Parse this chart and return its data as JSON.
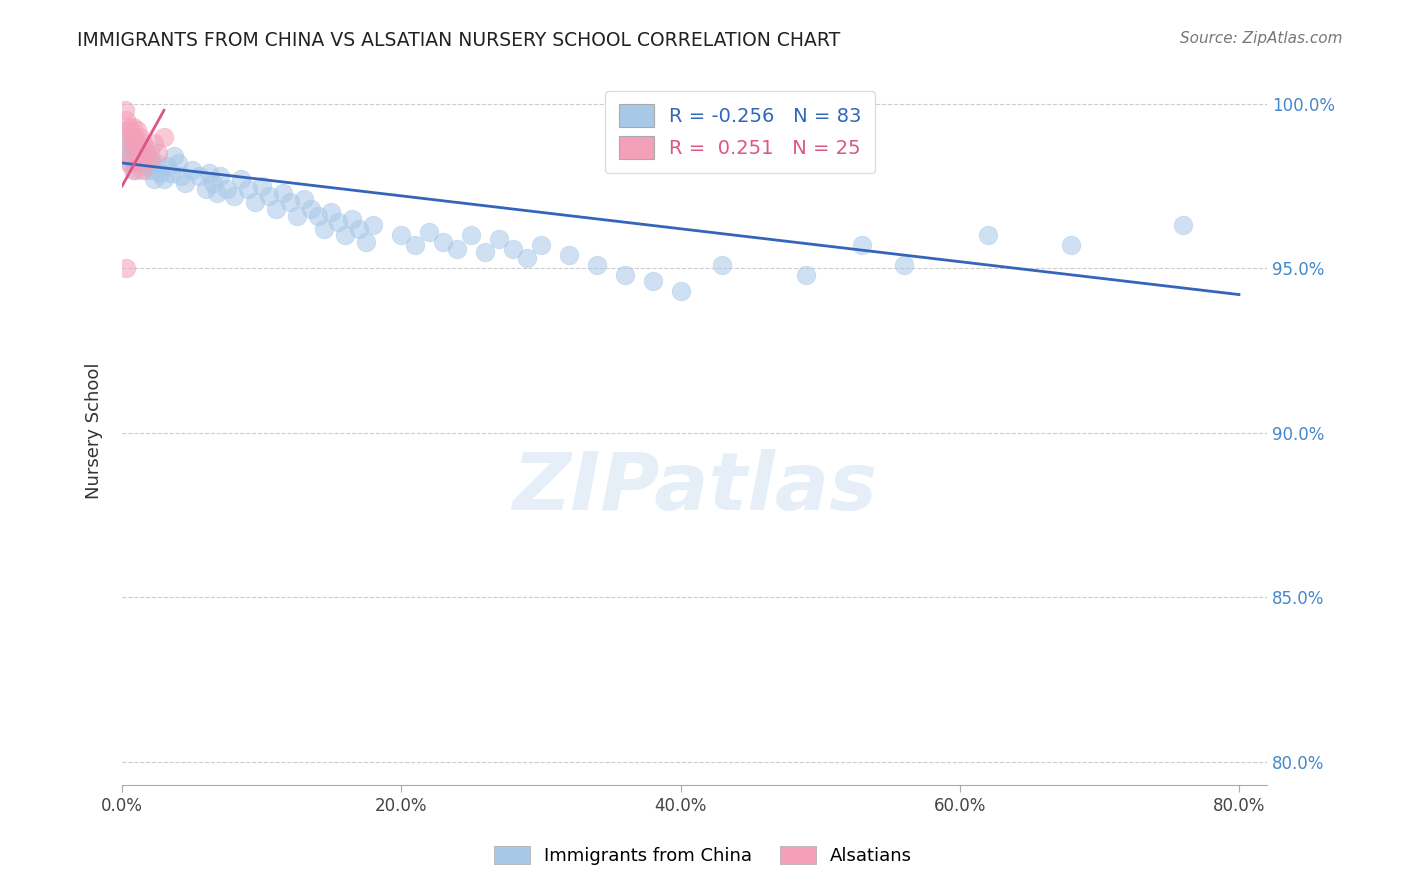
{
  "title": "IMMIGRANTS FROM CHINA VS ALSATIAN NURSERY SCHOOL CORRELATION CHART",
  "source": "Source: ZipAtlas.com",
  "ylabel": "Nursery School",
  "x_ticks_labels": [
    "0.0%",
    "20.0%",
    "40.0%",
    "60.0%",
    "80.0%"
  ],
  "x_ticks_vals": [
    0.0,
    0.2,
    0.4,
    0.6,
    0.8
  ],
  "y_ticks_labels": [
    "80.0%",
    "85.0%",
    "90.0%",
    "95.0%",
    "100.0%"
  ],
  "y_ticks_vals": [
    0.8,
    0.85,
    0.9,
    0.95,
    1.0
  ],
  "xlim": [
    0.0,
    0.82
  ],
  "ylim": [
    0.793,
    1.008
  ],
  "legend_blue_r": "-0.256",
  "legend_blue_n": "83",
  "legend_pink_r": "0.251",
  "legend_pink_n": "25",
  "blue_scatter_color": "#a8c8e8",
  "pink_scatter_color": "#f4a0b8",
  "blue_line_color": "#3366bb",
  "pink_line_color": "#dd5588",
  "watermark": "ZIPatlas",
  "blue_scatter_x": [
    0.002,
    0.003,
    0.004,
    0.005,
    0.006,
    0.007,
    0.008,
    0.009,
    0.01,
    0.011,
    0.012,
    0.013,
    0.014,
    0.015,
    0.016,
    0.017,
    0.018,
    0.019,
    0.02,
    0.021,
    0.022,
    0.023,
    0.025,
    0.027,
    0.03,
    0.032,
    0.035,
    0.037,
    0.04,
    0.042,
    0.045,
    0.05,
    0.055,
    0.06,
    0.062,
    0.065,
    0.068,
    0.07,
    0.075,
    0.08,
    0.085,
    0.09,
    0.095,
    0.1,
    0.105,
    0.11,
    0.115,
    0.12,
    0.125,
    0.13,
    0.135,
    0.14,
    0.145,
    0.15,
    0.155,
    0.16,
    0.165,
    0.17,
    0.175,
    0.18,
    0.2,
    0.21,
    0.22,
    0.23,
    0.24,
    0.25,
    0.26,
    0.27,
    0.28,
    0.29,
    0.3,
    0.32,
    0.34,
    0.36,
    0.38,
    0.4,
    0.43,
    0.49,
    0.53,
    0.56,
    0.62,
    0.68,
    0.76
  ],
  "blue_scatter_y": [
    0.99,
    0.987,
    0.984,
    0.982,
    0.986,
    0.988,
    0.983,
    0.98,
    0.985,
    0.988,
    0.986,
    0.984,
    0.982,
    0.987,
    0.984,
    0.981,
    0.98,
    0.983,
    0.986,
    0.983,
    0.98,
    0.977,
    0.982,
    0.979,
    0.977,
    0.981,
    0.979,
    0.984,
    0.982,
    0.978,
    0.976,
    0.98,
    0.978,
    0.974,
    0.979,
    0.976,
    0.973,
    0.978,
    0.974,
    0.972,
    0.977,
    0.974,
    0.97,
    0.975,
    0.972,
    0.968,
    0.973,
    0.97,
    0.966,
    0.971,
    0.968,
    0.966,
    0.962,
    0.967,
    0.964,
    0.96,
    0.965,
    0.962,
    0.958,
    0.963,
    0.96,
    0.957,
    0.961,
    0.958,
    0.956,
    0.96,
    0.955,
    0.959,
    0.956,
    0.953,
    0.957,
    0.954,
    0.951,
    0.948,
    0.946,
    0.943,
    0.951,
    0.948,
    0.957,
    0.951,
    0.96,
    0.957,
    0.963
  ],
  "pink_scatter_x": [
    0.002,
    0.003,
    0.004,
    0.005,
    0.006,
    0.007,
    0.008,
    0.009,
    0.01,
    0.011,
    0.013,
    0.015,
    0.017,
    0.02,
    0.023,
    0.026,
    0.03,
    0.004,
    0.006,
    0.008,
    0.01,
    0.012,
    0.014,
    0.003,
    0.016
  ],
  "pink_scatter_y": [
    0.998,
    0.995,
    0.992,
    0.99,
    0.993,
    0.988,
    0.993,
    0.99,
    0.988,
    0.992,
    0.99,
    0.988,
    0.985,
    0.983,
    0.988,
    0.985,
    0.99,
    0.985,
    0.982,
    0.98,
    0.985,
    0.982,
    0.98,
    0.95,
    0.983
  ],
  "blue_trendline_x": [
    0.0,
    0.8
  ],
  "blue_trendline_y": [
    0.982,
    0.942
  ],
  "pink_trendline_x": [
    0.0,
    0.03
  ],
  "pink_trendline_y": [
    0.975,
    0.998
  ]
}
